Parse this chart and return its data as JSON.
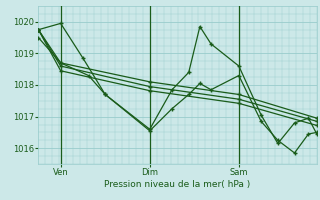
{
  "background_color": "#cce8e8",
  "grid_color": "#99cccc",
  "line_color": "#1a5c1a",
  "title": "Pression niveau de la mer( hPa )",
  "ylim": [
    1015.5,
    1020.5
  ],
  "yticks": [
    1016,
    1017,
    1018,
    1019,
    1020
  ],
  "xtick_labels": [
    "Ven",
    "Dim",
    "Sam"
  ],
  "xtick_positions": [
    8,
    40,
    72
  ],
  "vline_positions": [
    8,
    40,
    72
  ],
  "series": [
    {
      "x": [
        0,
        8,
        16,
        24,
        40,
        48,
        54,
        58,
        62,
        72,
        80,
        86,
        92,
        97,
        100
      ],
      "y": [
        1019.75,
        1019.95,
        1018.85,
        1017.7,
        1016.6,
        1017.85,
        1018.4,
        1019.85,
        1019.3,
        1018.6,
        1017.05,
        1016.15,
        1016.8,
        1016.95,
        1016.45
      ]
    },
    {
      "x": [
        0,
        8,
        18,
        24,
        40,
        48,
        54,
        58,
        62,
        72,
        80,
        86,
        92,
        97,
        100
      ],
      "y": [
        1019.5,
        1018.7,
        1018.3,
        1017.7,
        1016.55,
        1017.25,
        1017.7,
        1018.05,
        1017.85,
        1018.3,
        1016.85,
        1016.25,
        1015.85,
        1016.45,
        1016.5
      ]
    },
    {
      "x": [
        0,
        8,
        40,
        72,
        100
      ],
      "y": [
        1019.75,
        1018.7,
        1018.1,
        1017.7,
        1016.95
      ]
    },
    {
      "x": [
        0,
        8,
        40,
        72,
        100
      ],
      "y": [
        1019.75,
        1018.6,
        1017.95,
        1017.55,
        1016.85
      ]
    },
    {
      "x": [
        0,
        8,
        40,
        72,
        100
      ],
      "y": [
        1019.75,
        1018.45,
        1017.82,
        1017.42,
        1016.72
      ]
    }
  ]
}
